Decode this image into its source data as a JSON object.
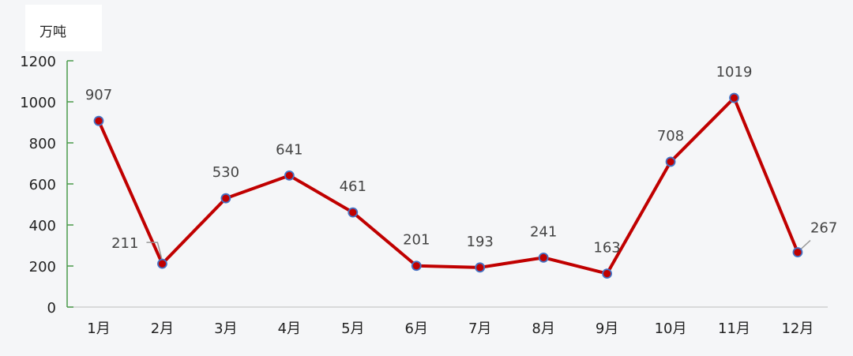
{
  "chart_data": {
    "type": "line",
    "unit_label": "万吨",
    "categories": [
      "1月",
      "2月",
      "3月",
      "4月",
      "5月",
      "6月",
      "7月",
      "8月",
      "9月",
      "10月",
      "11月",
      "12月"
    ],
    "values": [
      907,
      211,
      530,
      641,
      461,
      201,
      193,
      241,
      163,
      708,
      1019,
      267
    ],
    "yticks": [
      "0",
      "200",
      "400",
      "600",
      "800",
      "1000",
      "1200"
    ],
    "ylim": [
      0,
      1200
    ],
    "grid": false,
    "colors": {
      "line": "#c00000",
      "marker_fill": "#c00000",
      "marker_stroke": "#4472c4",
      "y_axis": "#4a9a4a",
      "x_axis": "#d0d0d0"
    }
  }
}
